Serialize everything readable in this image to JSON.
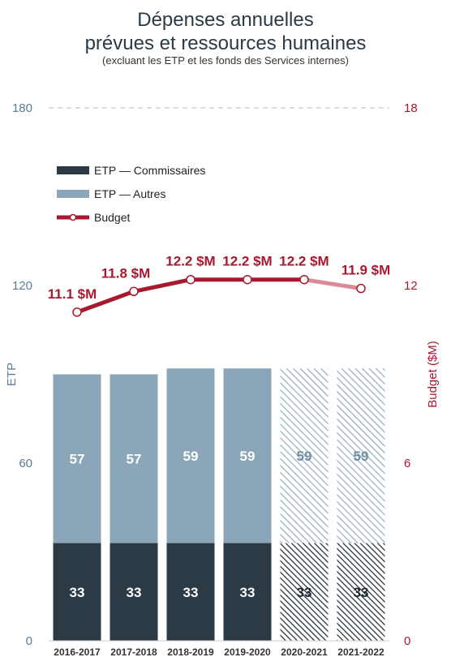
{
  "chart_data": {
    "type": "bar",
    "title_line1": "Dépenses annuelles",
    "title_line2": "prévues et ressources humaines",
    "subtitle": "(excluant les ETP et les fonds des Services internes)",
    "ylabel_left": "ETP",
    "ylabel_right": "Budget ($M)",
    "ylim_left": [
      0,
      180
    ],
    "ylim_right": [
      0,
      18
    ],
    "yticks_left": [
      "0",
      "60",
      "120",
      "180"
    ],
    "yticks_right": [
      "0",
      "6",
      "12",
      "18"
    ],
    "categories": [
      "2016-2017",
      "2017-2018",
      "2018-2019",
      "2019-2020",
      "2020-2021",
      "2021-2022"
    ],
    "projected_from_index": 4,
    "series": [
      {
        "name": "ETP — Commissaires",
        "kind": "bar",
        "values": [
          33,
          33,
          33,
          33,
          33,
          33
        ],
        "labels": [
          "33",
          "33",
          "33",
          "33",
          "33",
          "33"
        ],
        "color": "#2b3a45"
      },
      {
        "name": "ETP — Autres",
        "kind": "bar",
        "values": [
          57,
          57,
          59,
          59,
          59,
          59
        ],
        "labels": [
          "57",
          "57",
          "59",
          "59",
          "59",
          "59"
        ],
        "color": "#8aa6b8"
      },
      {
        "name": "Budget",
        "kind": "line",
        "axis": "right",
        "values": [
          11.1,
          11.8,
          12.2,
          12.2,
          12.2,
          11.9
        ],
        "labels": [
          "11.1 $M",
          "11.8 $M",
          "12.2 $M",
          "12.2 $M",
          "12.2 $M",
          "11.9 $M"
        ],
        "color": "#a8182f",
        "projected_color": "#d98a95"
      }
    ],
    "legend_position": "upper-left",
    "grid": "top-line-only"
  }
}
